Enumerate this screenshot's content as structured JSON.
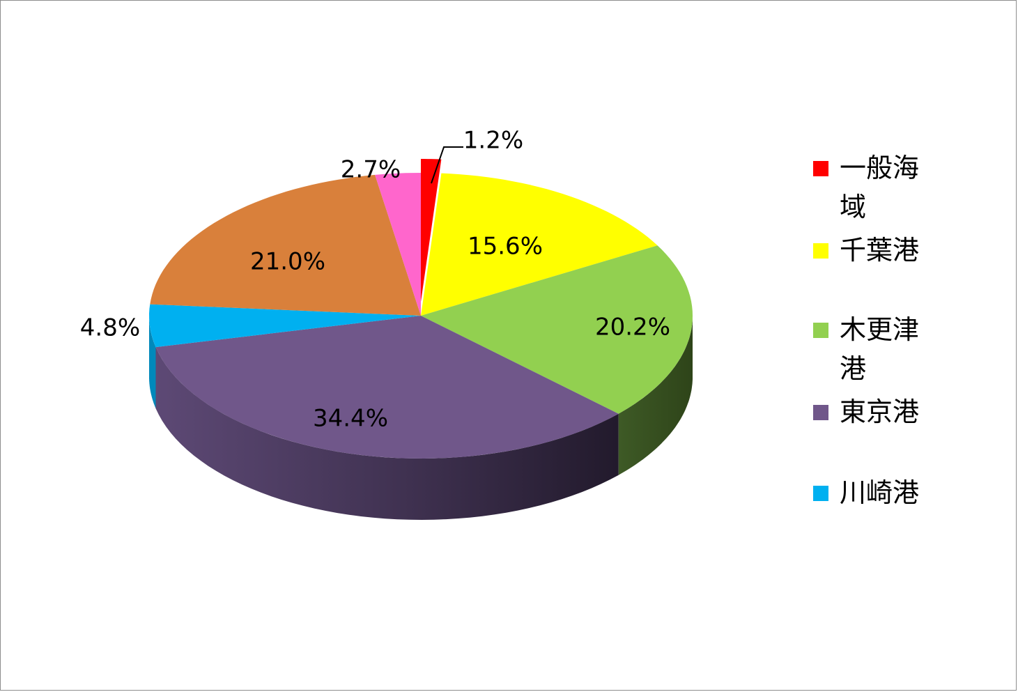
{
  "chart_data": {
    "type": "pie",
    "title": "",
    "style": "3d-exploded-first-slice",
    "start": "12 o'clock, clockwise",
    "slices": [
      {
        "name": "一般海域",
        "value": 1.2,
        "label": "1.2%",
        "color": "#ff0000",
        "exploded": true
      },
      {
        "name": "千葉港",
        "value": 15.6,
        "label": "15.6%",
        "color": "#ffff00"
      },
      {
        "name": "木更津港",
        "value": 20.2,
        "label": "20.2%",
        "color": "#92d050"
      },
      {
        "name": "東京港",
        "value": 34.4,
        "label": "34.4%",
        "color": "#70578a"
      },
      {
        "name": "川崎港",
        "value": 4.8,
        "label": "4.8%",
        "color": "#00b0f0"
      },
      {
        "name": "",
        "value": 21.0,
        "label": "21.0%",
        "color": "#d9803b"
      },
      {
        "name": "",
        "value": 2.7,
        "label": "2.7%",
        "color": "#ff66cc"
      }
    ],
    "legend": {
      "placement": "right",
      "entries": [
        "一般海域",
        "千葉港",
        "木更津港",
        "東京港",
        "川崎港"
      ]
    }
  }
}
